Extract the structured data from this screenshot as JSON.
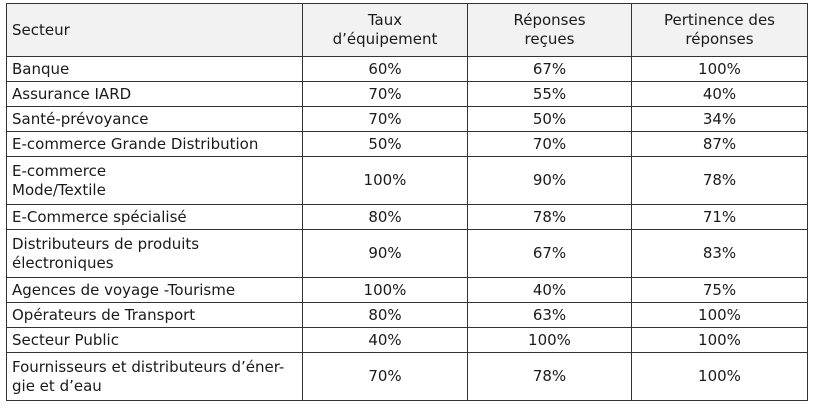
{
  "table": {
    "headers": {
      "sector": "Secteur",
      "equipment": "Taux\nd’équipement",
      "responses": "Réponses\nreçues",
      "relevance": "Pertinence des\nréponses"
    },
    "rows": [
      {
        "sector": "Banque",
        "equipment": "60%",
        "responses": "67%",
        "relevance": "100%"
      },
      {
        "sector": "Assurance IARD",
        "equipment": "70%",
        "responses": "55%",
        "relevance": "40%"
      },
      {
        "sector": "Santé-prévoyance",
        "equipment": "70%",
        "responses": "50%",
        "relevance": "34%"
      },
      {
        "sector": "E-commerce Grande Distribution",
        "equipment": "50%",
        "responses": "70%",
        "relevance": "87%"
      },
      {
        "sector": "E-commerce\nMode/Textile",
        "equipment": "100%",
        "responses": "90%",
        "relevance": "78%"
      },
      {
        "sector": "E-Commerce spécialisé",
        "equipment": "80%",
        "responses": "78%",
        "relevance": "71%"
      },
      {
        "sector": "Distributeurs de produits\nélectroniques",
        "equipment": "90%",
        "responses": "67%",
        "relevance": "83%"
      },
      {
        "sector": "Agences de voyage -Tourisme",
        "equipment": "100%",
        "responses": "40%",
        "relevance": "75%"
      },
      {
        "sector": "Opérateurs de Transport",
        "equipment": "80%",
        "responses": "63%",
        "relevance": "100%"
      },
      {
        "sector": "Secteur Public",
        "equipment": "40%",
        "responses": "100%",
        "relevance": "100%"
      },
      {
        "sector": "Fournisseurs et distributeurs d’éner-\ngie et d’eau",
        "equipment": "70%",
        "responses": "78%",
        "relevance": "100%"
      }
    ]
  }
}
